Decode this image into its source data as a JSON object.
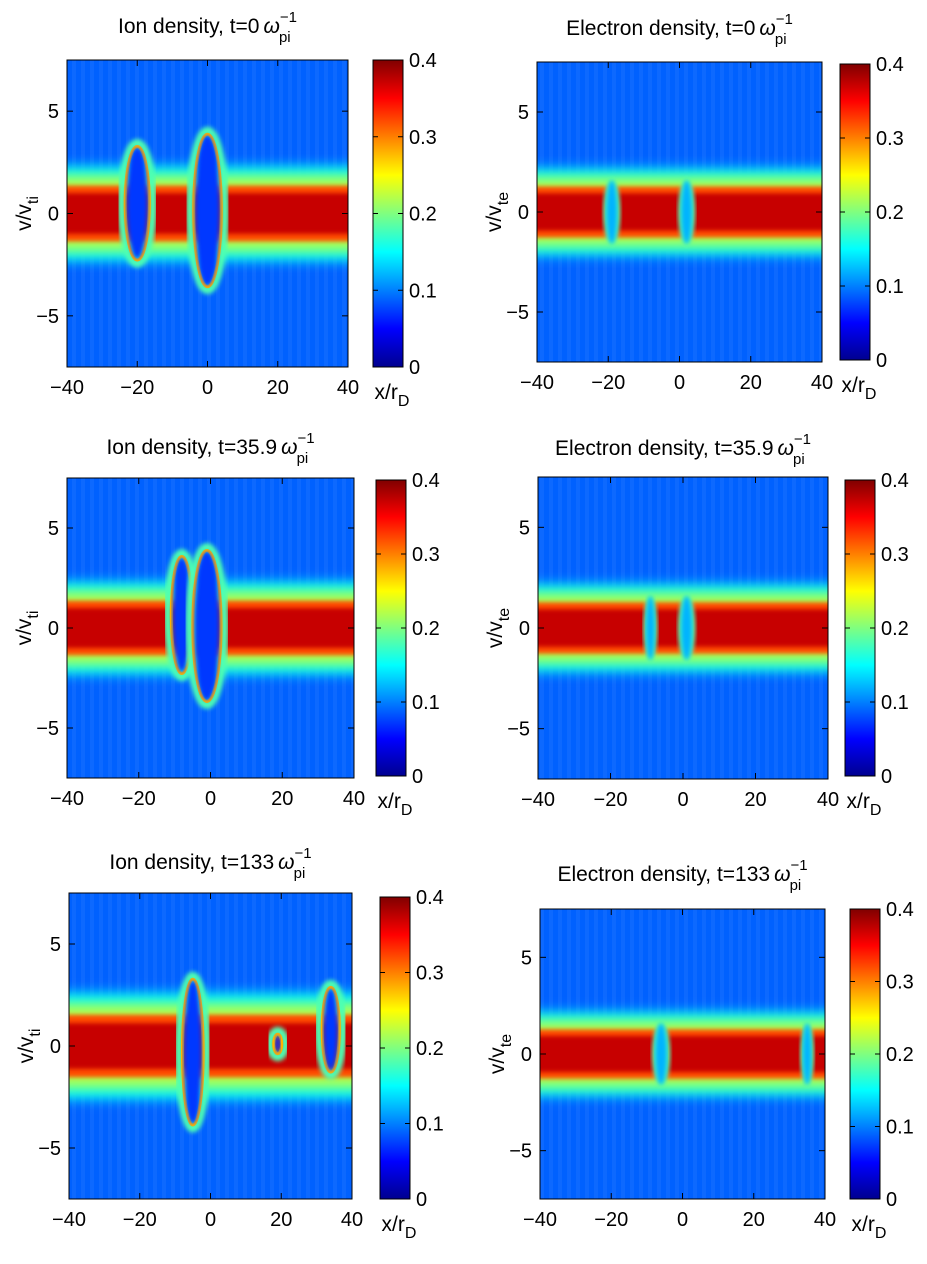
{
  "colormap": {
    "name": "jet",
    "background": "#ffffff",
    "frame": "#000000"
  },
  "chart_data": [
    {
      "id": "ion-t0",
      "type": "heatmap",
      "species": "ion",
      "title_main": "Ion density, t=0",
      "title_sym": "ω",
      "title_sup": "−1",
      "title_sub": "pi",
      "xlabel": "",
      "ylabel_main": "v/v",
      "ylabel_sub": "ti",
      "xlim": [
        -40,
        40
      ],
      "ylim": [
        -7.5,
        7.5
      ],
      "xticks": [
        "−40",
        "−20",
        "0",
        "20",
        "40"
      ],
      "xtick_values": [
        -40,
        -20,
        0,
        20,
        40
      ],
      "yticks": [
        "5",
        "0",
        "−5"
      ],
      "ytick_values": [
        5,
        0,
        -5
      ],
      "colorbar": {
        "min": 0,
        "max": 0.4,
        "ticks": [
          "0.4",
          "0.3",
          "0.2",
          "0.1",
          "0"
        ],
        "tick_values": [
          0.4,
          0.3,
          0.2,
          0.1,
          0
        ],
        "label_main": "x/r",
        "label_sub": "D"
      },
      "band": {
        "center_v": 0,
        "half_width_v": 1.6,
        "peak_density": 0.4
      },
      "holes": [
        {
          "x": -20,
          "v_top": 3.2,
          "v_bottom": -2.2,
          "half_width_x": 3
        },
        {
          "x": 0,
          "v_top": 3.8,
          "v_bottom": -3.5,
          "half_width_x": 3.5
        }
      ],
      "gaps": []
    },
    {
      "id": "electron-t0",
      "type": "heatmap",
      "species": "electron",
      "title_main": "Electron density, t=0",
      "title_sym": "ω",
      "title_sup": "−1",
      "title_sub": "pi",
      "xlabel": "",
      "ylabel_main": "v/v",
      "ylabel_sub": "te",
      "xlim": [
        -40,
        40
      ],
      "ylim": [
        -7.5,
        7.5
      ],
      "xticks": [
        "−40",
        "−20",
        "0",
        "20",
        "40"
      ],
      "xtick_values": [
        -40,
        -20,
        0,
        20,
        40
      ],
      "yticks": [
        "5",
        "0",
        "−5"
      ],
      "ytick_values": [
        5,
        0,
        -5
      ],
      "colorbar": {
        "min": 0,
        "max": 0.4,
        "ticks": [
          "0.4",
          "0.3",
          "0.2",
          "0.1",
          "0"
        ],
        "tick_values": [
          0.4,
          0.3,
          0.2,
          0.1,
          0
        ],
        "label_main": "x/r",
        "label_sub": "D"
      },
      "band": {
        "center_v": 0,
        "half_width_v": 1.5,
        "peak_density": 0.4
      },
      "holes": [],
      "gaps": [
        {
          "x": -19,
          "half_width_x": 1.5
        },
        {
          "x": 2,
          "half_width_x": 1.5
        }
      ]
    },
    {
      "id": "ion-t35.9",
      "type": "heatmap",
      "species": "ion",
      "title_main": "Ion density, t=35.9",
      "title_sym": "ω",
      "title_sup": "−1",
      "title_sub": "pi",
      "xlabel": "",
      "ylabel_main": "v/v",
      "ylabel_sub": "ti",
      "xlim": [
        -40,
        40
      ],
      "ylim": [
        -7.5,
        7.5
      ],
      "xticks": [
        "−40",
        "−20",
        "0",
        "20",
        "40"
      ],
      "xtick_values": [
        -40,
        -20,
        0,
        20,
        40
      ],
      "yticks": [
        "5",
        "0",
        "−5"
      ],
      "ytick_values": [
        5,
        0,
        -5
      ],
      "colorbar": {
        "min": 0,
        "max": 0.4,
        "ticks": [
          "0.4",
          "0.3",
          "0.2",
          "0.1",
          "0"
        ],
        "tick_values": [
          0.4,
          0.3,
          0.2,
          0.1,
          0
        ],
        "label_main": "x/r",
        "label_sub": "D"
      },
      "band": {
        "center_v": 0,
        "half_width_v": 1.6,
        "peak_density": 0.4
      },
      "holes": [
        {
          "x": -8,
          "v_top": 3.5,
          "v_bottom": -2.2,
          "half_width_x": 2.5
        },
        {
          "x": -1,
          "v_top": 3.8,
          "v_bottom": -3.6,
          "half_width_x": 3.5
        }
      ],
      "gaps": []
    },
    {
      "id": "electron-t35.9",
      "type": "heatmap",
      "species": "electron",
      "title_main": "Electron density, t=35.9",
      "title_sym": "ω",
      "title_sup": "−1",
      "title_sub": "pi",
      "xlabel": "",
      "ylabel_main": "v/v",
      "ylabel_sub": "te",
      "xlim": [
        -40,
        40
      ],
      "ylim": [
        -7.5,
        7.5
      ],
      "xticks": [
        "−40",
        "−20",
        "0",
        "20",
        "40"
      ],
      "xtick_values": [
        -40,
        -20,
        0,
        20,
        40
      ],
      "yticks": [
        "5",
        "0",
        "−5"
      ],
      "ytick_values": [
        5,
        0,
        -5
      ],
      "colorbar": {
        "min": 0,
        "max": 0.4,
        "ticks": [
          "0.4",
          "0.3",
          "0.2",
          "0.1",
          "0"
        ],
        "tick_values": [
          0.4,
          0.3,
          0.2,
          0.1,
          0
        ],
        "label_main": "x/r",
        "label_sub": "D"
      },
      "band": {
        "center_v": 0,
        "half_width_v": 1.5,
        "peak_density": 0.4
      },
      "holes": [],
      "gaps": [
        {
          "x": -9,
          "half_width_x": 1.2
        },
        {
          "x": 1,
          "half_width_x": 1.5
        }
      ]
    },
    {
      "id": "ion-t133",
      "type": "heatmap",
      "species": "ion",
      "title_main": "Ion density, t=133",
      "title_sym": "ω",
      "title_sup": "−1",
      "title_sub": "pi",
      "xlabel": "",
      "ylabel_main": "v/v",
      "ylabel_sub": "ti",
      "xlim": [
        -40,
        40
      ],
      "ylim": [
        -7.5,
        7.5
      ],
      "xticks": [
        "−40",
        "−20",
        "0",
        "20",
        "40"
      ],
      "xtick_values": [
        -40,
        -20,
        0,
        20,
        40
      ],
      "yticks": [
        "5",
        "0",
        "−5"
      ],
      "ytick_values": [
        5,
        0,
        -5
      ],
      "colorbar": {
        "min": 0,
        "max": 0.4,
        "ticks": [
          "0.4",
          "0.3",
          "0.2",
          "0.1",
          "0"
        ],
        "tick_values": [
          0.4,
          0.3,
          0.2,
          0.1,
          0
        ],
        "label_main": "x/r",
        "label_sub": "D"
      },
      "band": {
        "center_v": 0,
        "half_width_v": 1.8,
        "peak_density": 0.4
      },
      "holes": [
        {
          "x": -5,
          "v_top": 3.2,
          "v_bottom": -3.8,
          "half_width_x": 2.5
        },
        {
          "x": 34,
          "v_top": 2.8,
          "v_bottom": -1.2,
          "half_width_x": 2.0
        },
        {
          "x": 19,
          "v_top": 0.5,
          "v_bottom": -0.3,
          "half_width_x": 0.7
        }
      ],
      "gaps": []
    },
    {
      "id": "electron-t133",
      "type": "heatmap",
      "species": "electron",
      "title_main": "Electron density, t=133",
      "title_sym": "ω",
      "title_sup": "−1",
      "title_sub": "pi",
      "xlabel": "",
      "ylabel_main": "v/v",
      "ylabel_sub": "te",
      "xlim": [
        -40,
        40
      ],
      "ylim": [
        -7.5,
        7.5
      ],
      "xticks": [
        "−40",
        "−20",
        "0",
        "20",
        "40"
      ],
      "xtick_values": [
        -40,
        -20,
        0,
        20,
        40
      ],
      "yticks": [
        "5",
        "0",
        "−5"
      ],
      "ytick_values": [
        5,
        0,
        -5
      ],
      "colorbar": {
        "min": 0,
        "max": 0.4,
        "ticks": [
          "0.4",
          "0.3",
          "0.2",
          "0.1",
          "0"
        ],
        "tick_values": [
          0.4,
          0.3,
          0.2,
          0.1,
          0
        ],
        "label_main": "x/r",
        "label_sub": "D"
      },
      "band": {
        "center_v": 0,
        "half_width_v": 1.5,
        "peak_density": 0.4
      },
      "holes": [],
      "gaps": [
        {
          "x": -6,
          "half_width_x": 1.6
        },
        {
          "x": 35,
          "half_width_x": 1.2
        }
      ]
    }
  ]
}
